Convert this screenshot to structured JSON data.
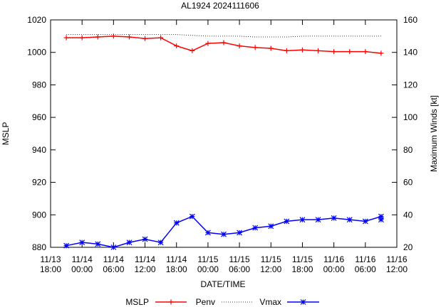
{
  "chart_data": {
    "type": "line",
    "title": "AL1924 2024111606",
    "xlabel": "DATE/TIME",
    "ylabel": "MSLP",
    "y2label": "Maximum Winds [kt]",
    "grid": false,
    "legend_position": "bottom",
    "x_unit": "hours since 11/13 18:00",
    "xlim": [
      0,
      66
    ],
    "ylim": [
      880,
      1020
    ],
    "y2lim": [
      20,
      160
    ],
    "x_ticks": [
      {
        "x": 0,
        "date": "11/13",
        "time": "18:00"
      },
      {
        "x": 6,
        "date": "11/14",
        "time": "00:00"
      },
      {
        "x": 12,
        "date": "11/14",
        "time": "06:00"
      },
      {
        "x": 18,
        "date": "11/14",
        "time": "12:00"
      },
      {
        "x": 24,
        "date": "11/14",
        "time": "18:00"
      },
      {
        "x": 30,
        "date": "11/15",
        "time": "00:00"
      },
      {
        "x": 36,
        "date": "11/15",
        "time": "06:00"
      },
      {
        "x": 42,
        "date": "11/15",
        "time": "12:00"
      },
      {
        "x": 48,
        "date": "11/15",
        "time": "18:00"
      },
      {
        "x": 54,
        "date": "11/16",
        "time": "00:00"
      },
      {
        "x": 60,
        "date": "11/16",
        "time": "06:00"
      },
      {
        "x": 66,
        "date": "11/16",
        "time": "12:00"
      }
    ],
    "y_ticks": [
      "880",
      "900",
      "920",
      "940",
      "960",
      "980",
      "1000",
      "1020"
    ],
    "y2_ticks": [
      "20",
      "40",
      "60",
      "80",
      "100",
      "120",
      "140",
      "160"
    ],
    "series": [
      {
        "name": "MSLP",
        "axis": "y",
        "color": "#ff0000",
        "marker": "plus",
        "points": [
          [
            3,
            1009
          ],
          [
            6,
            1009
          ],
          [
            9,
            1009.5
          ],
          [
            12,
            1010
          ],
          [
            15,
            1009.5
          ],
          [
            18,
            1008.5
          ],
          [
            21,
            1009
          ],
          [
            24,
            1004
          ],
          [
            27,
            1001
          ],
          [
            30,
            1005.5
          ],
          [
            33,
            1006
          ],
          [
            36,
            1004
          ],
          [
            39,
            1003
          ],
          [
            42,
            1002.5
          ],
          [
            45,
            1001
          ],
          [
            48,
            1001.5
          ],
          [
            51,
            1001
          ],
          [
            54,
            1000.5
          ],
          [
            57,
            1000.5
          ],
          [
            60,
            1000.5
          ],
          [
            63,
            999.5
          ]
        ]
      },
      {
        "name": "Penv",
        "axis": "y",
        "color": "#000000",
        "style": "dotted",
        "points": [
          [
            3,
            1011
          ],
          [
            24,
            1011
          ],
          [
            30,
            1010
          ],
          [
            36,
            1010
          ],
          [
            39,
            1009.5
          ],
          [
            45,
            1009.5
          ],
          [
            48,
            1010
          ],
          [
            63,
            1010
          ]
        ]
      },
      {
        "name": "Vmax",
        "axis": "y2",
        "color": "#0000ff",
        "marker": "star",
        "points": [
          [
            3,
            21
          ],
          [
            6,
            23
          ],
          [
            9,
            22
          ],
          [
            12,
            20
          ],
          [
            15,
            23
          ],
          [
            18,
            25
          ],
          [
            21,
            23
          ],
          [
            24,
            35
          ],
          [
            27,
            39
          ],
          [
            30,
            29
          ],
          [
            33,
            28
          ],
          [
            36,
            29
          ],
          [
            39,
            32
          ],
          [
            42,
            33
          ],
          [
            45,
            36
          ],
          [
            48,
            37
          ],
          [
            51,
            37
          ],
          [
            54,
            38
          ],
          [
            57,
            37
          ],
          [
            60,
            36
          ],
          [
            63,
            39
          ],
          [
            63,
            37
          ]
        ]
      }
    ]
  }
}
